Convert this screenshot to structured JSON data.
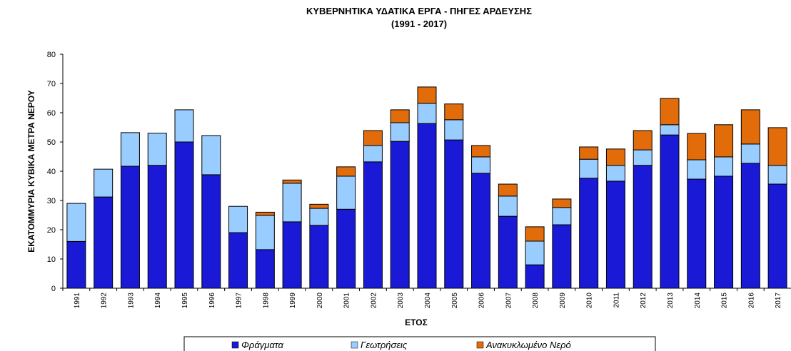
{
  "chart_data": {
    "type": "stacked_bar",
    "title": "ΚΥΒΕΡΝΗΤΙΚΑ  ΥΔΑΤΙΚΑ  ΕΡΓΑ - ΠΗΓΕΣ ΑΡΔΕΥΣΗΣ",
    "subtitle": "(1991 - 2017)",
    "x_label": "ΕΤΟΣ",
    "y_label": "ΕΚΑΤΟΜΜΥΡΙΑ ΚΥΒΙΚΑ ΜΕΤΡΑ ΝΕΡΟΥ",
    "categories": [
      "1991",
      "1992",
      "1993",
      "1994",
      "1995",
      "1996",
      "1997",
      "1998",
      "1999",
      "2000",
      "2001",
      "2002",
      "2003",
      "2004",
      "2005",
      "2006",
      "2007",
      "2008",
      "2009",
      "2010",
      "2011",
      "2012",
      "2013",
      "2014",
      "2015",
      "2016",
      "2017"
    ],
    "series": [
      {
        "name": "Φράγματα",
        "color": "#1a1ad6",
        "values": [
          16,
          31.2,
          41.7,
          42,
          50,
          38.8,
          19,
          13.2,
          22.7,
          21.5,
          27,
          43.2,
          50.2,
          56.3,
          50.7,
          39.3,
          24.6,
          8,
          21.7,
          37.6,
          36.6,
          42,
          52.4,
          37.3,
          38.3,
          42.7,
          35.6
        ]
      },
      {
        "name": "Γεωτρήσεις",
        "color": "#99ccff",
        "values": [
          13,
          9.5,
          11.5,
          11,
          11,
          13.4,
          9,
          11.7,
          13.2,
          5.8,
          11.3,
          5.6,
          6.4,
          6.9,
          6.9,
          5.6,
          6.9,
          8.1,
          5.9,
          6.5,
          5.4,
          5.3,
          3.5,
          6.6,
          6.6,
          6.6,
          6.4
        ]
      },
      {
        "name": "Ανακυκλωμένο Νερό",
        "color": "#e36c0a",
        "values": [
          0,
          0,
          0,
          0,
          0,
          0,
          0,
          1.1,
          1.1,
          1.4,
          3.2,
          5.1,
          4.4,
          5.6,
          5.4,
          3.9,
          4.1,
          4.9,
          2.9,
          4.2,
          5.6,
          6.6,
          9,
          9,
          11,
          11.7,
          12.9
        ]
      }
    ],
    "ylim": [
      0,
      80
    ],
    "yticks": [
      0,
      10,
      20,
      30,
      40,
      50,
      60,
      70,
      80
    ],
    "legend": "bottom"
  }
}
